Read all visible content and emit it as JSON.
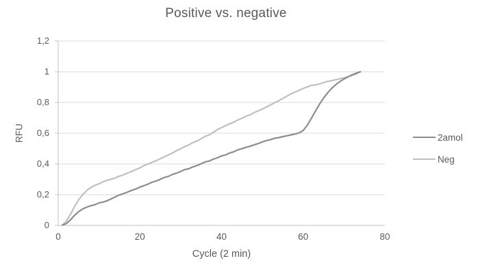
{
  "chart_data": {
    "type": "line",
    "title": "Positive vs. negative",
    "xlabel": "Cycle (2 min)",
    "ylabel": "RFU",
    "xlim": [
      0,
      80
    ],
    "ylim": [
      0,
      1.2
    ],
    "grid": true,
    "legend_position": "right",
    "decimal_separator": ",",
    "x_ticks": [
      "0",
      "20",
      "40",
      "60",
      "80"
    ],
    "x_tick_values": [
      0,
      20,
      40,
      60,
      80
    ],
    "y_ticks": [
      "0",
      "0,2",
      "0,4",
      "0,6",
      "0,8",
      "1",
      "1,2"
    ],
    "y_tick_values": [
      0,
      0.2,
      0.4,
      0.6,
      0.8,
      1,
      1.2
    ],
    "colors": {
      "background": "#ffffff",
      "gridline": "#d9d9d9",
      "axis": "#c0c0c0",
      "text": "#595959",
      "series_2amol": "#8c8c8c",
      "series_neg": "#bfbfbf"
    },
    "x": [
      1,
      2,
      3,
      4,
      5,
      6,
      7,
      8,
      9,
      10,
      11,
      12,
      13,
      14,
      15,
      16,
      17,
      18,
      19,
      20,
      21,
      22,
      23,
      24,
      25,
      26,
      27,
      28,
      29,
      30,
      31,
      32,
      33,
      34,
      35,
      36,
      37,
      38,
      39,
      40,
      41,
      42,
      43,
      44,
      45,
      46,
      47,
      48,
      49,
      50,
      51,
      52,
      53,
      54,
      55,
      56,
      57,
      58,
      59,
      60,
      61,
      62,
      63,
      64,
      65,
      66,
      67,
      68,
      69,
      70,
      71,
      72,
      73,
      74
    ],
    "series": [
      {
        "name": "2amol",
        "color": "#8c8c8c",
        "values": [
          0.002,
          0.012,
          0.036,
          0.065,
          0.09,
          0.107,
          0.119,
          0.128,
          0.135,
          0.146,
          0.152,
          0.161,
          0.173,
          0.186,
          0.198,
          0.207,
          0.217,
          0.228,
          0.237,
          0.25,
          0.258,
          0.269,
          0.281,
          0.289,
          0.3,
          0.312,
          0.319,
          0.332,
          0.34,
          0.351,
          0.363,
          0.369,
          0.381,
          0.39,
          0.401,
          0.413,
          0.419,
          0.431,
          0.44,
          0.452,
          0.459,
          0.471,
          0.479,
          0.492,
          0.499,
          0.508,
          0.515,
          0.524,
          0.533,
          0.543,
          0.552,
          0.558,
          0.567,
          0.571,
          0.578,
          0.583,
          0.589,
          0.594,
          0.602,
          0.618,
          0.651,
          0.697,
          0.743,
          0.789,
          0.829,
          0.863,
          0.892,
          0.916,
          0.936,
          0.953,
          0.967,
          0.98,
          0.99,
          1.0
        ]
      },
      {
        "name": "Neg",
        "color": "#bfbfbf",
        "values": [
          0.002,
          0.028,
          0.072,
          0.122,
          0.166,
          0.201,
          0.227,
          0.247,
          0.261,
          0.271,
          0.284,
          0.294,
          0.301,
          0.309,
          0.321,
          0.329,
          0.342,
          0.351,
          0.364,
          0.374,
          0.389,
          0.399,
          0.411,
          0.421,
          0.434,
          0.446,
          0.459,
          0.471,
          0.487,
          0.499,
          0.513,
          0.524,
          0.539,
          0.549,
          0.564,
          0.579,
          0.589,
          0.606,
          0.624,
          0.637,
          0.649,
          0.661,
          0.672,
          0.686,
          0.697,
          0.711,
          0.719,
          0.734,
          0.746,
          0.757,
          0.771,
          0.784,
          0.798,
          0.811,
          0.826,
          0.841,
          0.856,
          0.867,
          0.879,
          0.891,
          0.901,
          0.911,
          0.914,
          0.921,
          0.929,
          0.937,
          0.942,
          0.948,
          0.954,
          0.961,
          0.967,
          0.976,
          0.986,
          1.0
        ]
      }
    ]
  }
}
